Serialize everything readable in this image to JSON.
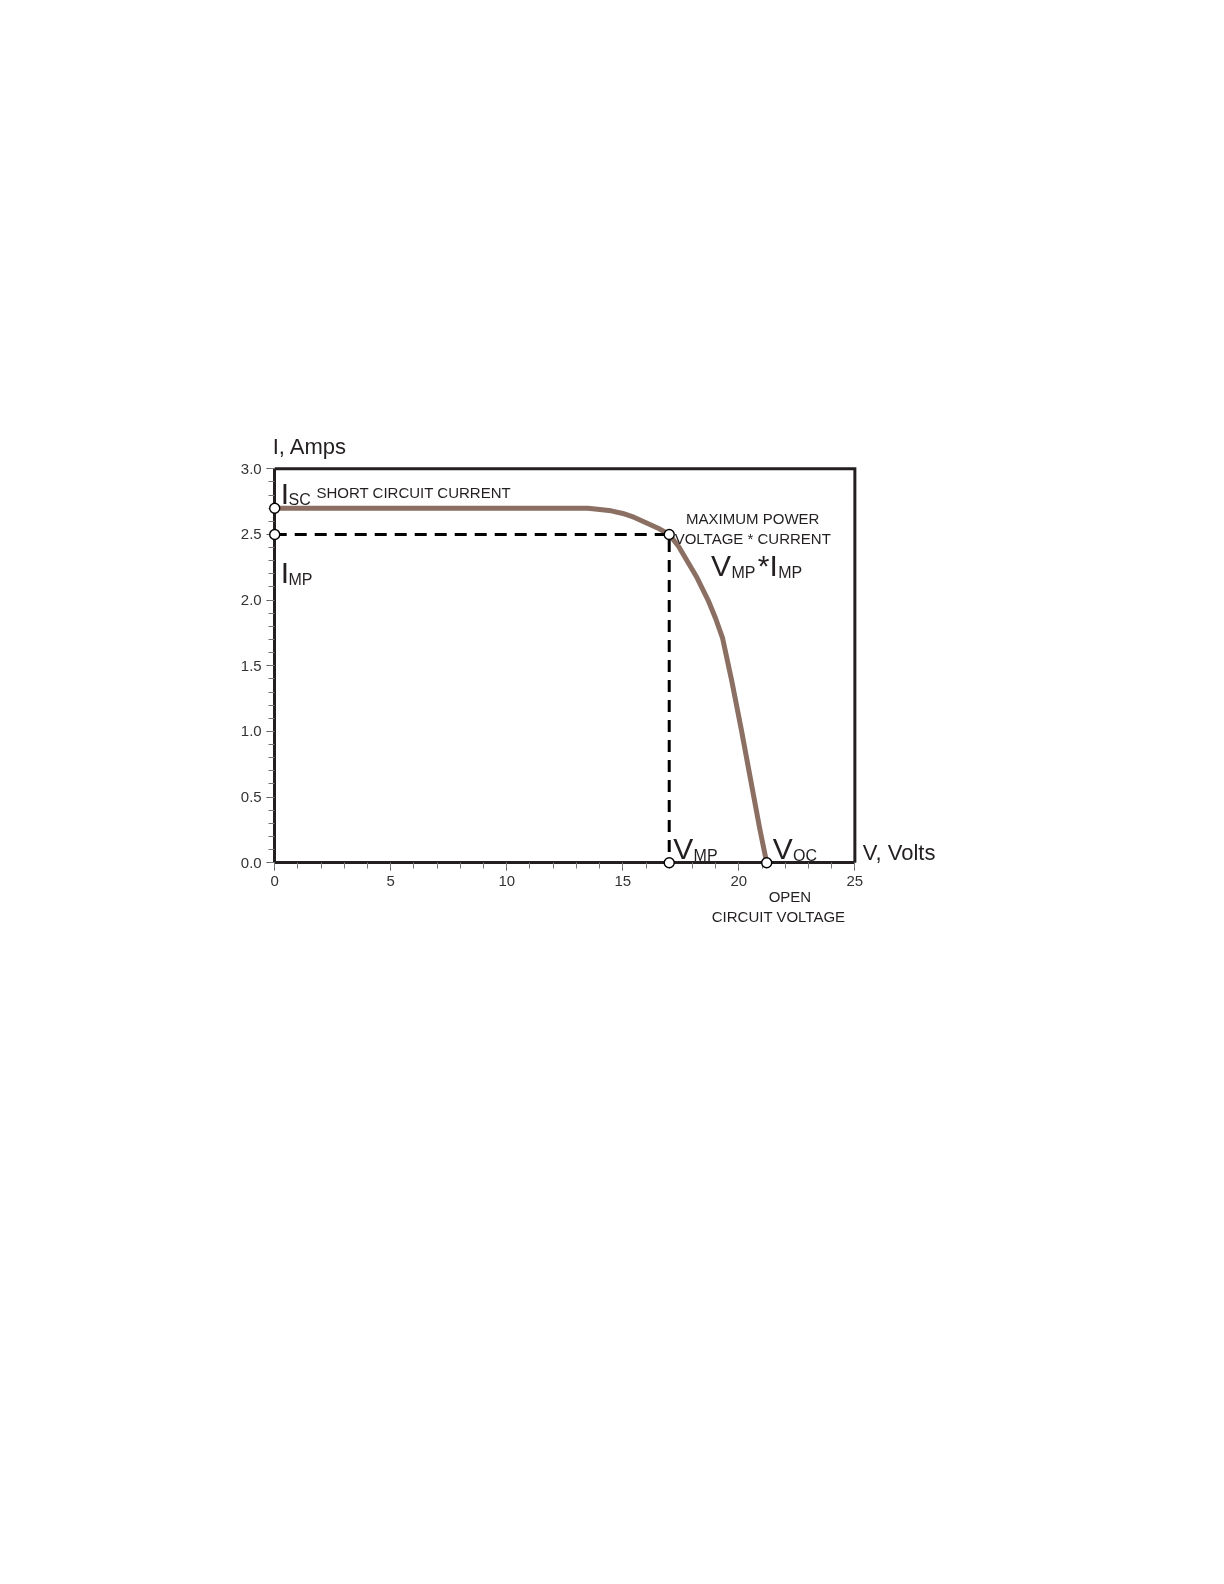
{
  "chart_data": {
    "type": "line",
    "xlabel": "V, Volts",
    "ylabel": "I, Amps",
    "xlim": [
      0,
      25
    ],
    "ylim": [
      0,
      3.0
    ],
    "xticks": [
      0,
      5,
      10,
      15,
      20,
      25
    ],
    "yticks": [
      {
        "value": 0,
        "label": "0.0"
      },
      {
        "value": 0.5,
        "label": "0.5"
      },
      {
        "value": 1,
        "label": "1.0"
      },
      {
        "value": 1.5,
        "label": "1.5"
      },
      {
        "value": 2,
        "label": "2.0"
      },
      {
        "value": 2.5,
        "label": "2.5"
      },
      {
        "value": 3,
        "label": "3.0"
      }
    ],
    "grid": false,
    "series": [
      {
        "color": "#8b6f62",
        "line_style": "solid",
        "x": [
          0,
          2,
          4,
          6,
          8,
          10,
          12,
          13,
          13.5,
          14,
          14.5,
          15,
          15.5,
          16,
          16.5,
          17,
          17.4,
          17.8,
          18.2,
          18.7,
          19.0,
          19.3,
          19.7,
          20.1,
          20.5,
          20.9,
          21.2
        ],
        "values": [
          2.7,
          2.7,
          2.7,
          2.7,
          2.7,
          2.7,
          2.7,
          2.7,
          2.7,
          2.69,
          2.68,
          2.66,
          2.63,
          2.59,
          2.55,
          2.5,
          2.41,
          2.29,
          2.17,
          1.99,
          1.86,
          1.71,
          1.38,
          1.02,
          0.64,
          0.26,
          0
        ]
      },
      {
        "color": "#000000",
        "line_style": "dashed",
        "x": [
          0,
          17,
          17
        ],
        "values": [
          2.5,
          2.5,
          0
        ]
      },
      {
        "type": "scatter",
        "color": "#000000",
        "marker": "circle",
        "x": [
          0,
          0,
          17,
          17,
          21.2
        ],
        "values": [
          2.7,
          2.5,
          2.5,
          0,
          0
        ]
      }
    ],
    "annotations": [
      {
        "text": "I$_{SC}$",
        "x": 0,
        "y": 2.7
      },
      "SHORT CIRCUIT  CURRENT",
      {
        "text": "I$_{MP}$",
        "x": 0,
        "y": 2.5
      },
      "MAXIMUM POWER",
      "VOLTAGE * CURRENT",
      "V$_{MP}$*I$_{MP}$",
      {
        "text": "V$_{MP}$",
        "x": 17,
        "y": 0
      },
      {
        "text": "V$_{OC}$",
        "x": 21.2,
        "y": 0
      },
      "OPEN",
      "CIRCUIT  VOLTAGE"
    ]
  }
}
